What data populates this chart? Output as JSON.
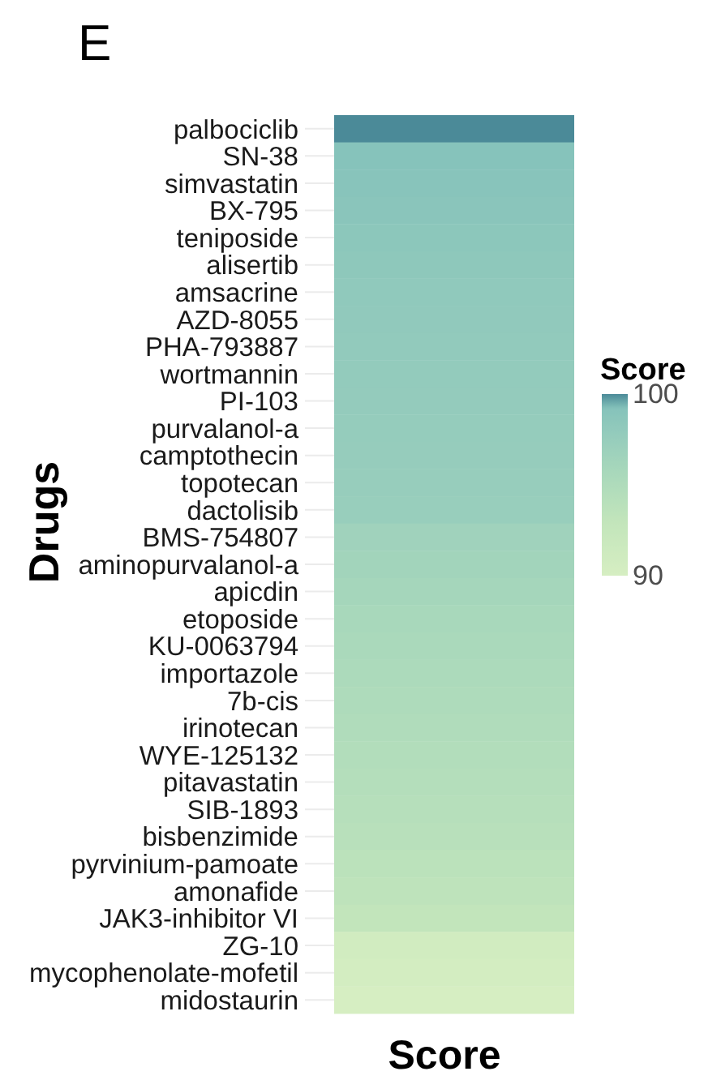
{
  "chart_data": {
    "type": "heatmap",
    "title": "E",
    "xlabel": "Score",
    "ylabel": "Drugs",
    "clabel": "Score",
    "categories": [
      null
    ],
    "y_categories": [
      "palbociclib",
      "SN-38",
      "simvastatin",
      "BX-795",
      "teniposide",
      "alisertib",
      "amsacrine",
      "AZD-8055",
      "PHA-793887",
      "wortmannin",
      "PI-103",
      "purvalanol-a",
      "camptothecin",
      "topotecan",
      "dactolisib",
      "BMS-754807",
      "aminopurvalanol-a",
      "apicdin",
      "etoposide",
      "KU-0063794",
      "importazole",
      "7b-cis",
      "irinotecan",
      "WYE-125132",
      "pitavastatin",
      "SIB-1893",
      "bisbenzimide",
      "pyrvinium-pamoate",
      "amonafide",
      "JAK3-inhibitor VI",
      "ZG-10",
      "mycophenolate-mofetil",
      "midostaurin"
    ],
    "cells": [
      [
        100
      ],
      [
        99.2
      ],
      [
        99.0
      ],
      [
        98.8
      ],
      [
        98.6
      ],
      [
        98.4
      ],
      [
        98.2
      ],
      [
        98.1
      ],
      [
        98.0
      ],
      [
        97.9
      ],
      [
        97.8
      ],
      [
        97.7
      ],
      [
        97.6
      ],
      [
        97.5
      ],
      [
        97.4
      ],
      [
        96.6
      ],
      [
        96.3
      ],
      [
        96.0
      ],
      [
        95.7
      ],
      [
        95.5
      ],
      [
        95.3
      ],
      [
        95.1
      ],
      [
        94.9
      ],
      [
        94.7
      ],
      [
        94.5
      ],
      [
        94.3
      ],
      [
        94.0
      ],
      [
        93.7
      ],
      [
        93.4
      ],
      [
        93.0
      ],
      [
        90.7
      ],
      [
        90.4
      ],
      [
        90.0
      ]
    ],
    "clim": [
      90,
      100
    ],
    "cticks": [
      90,
      100
    ],
    "grid": "y",
    "tick_labels": "y"
  }
}
